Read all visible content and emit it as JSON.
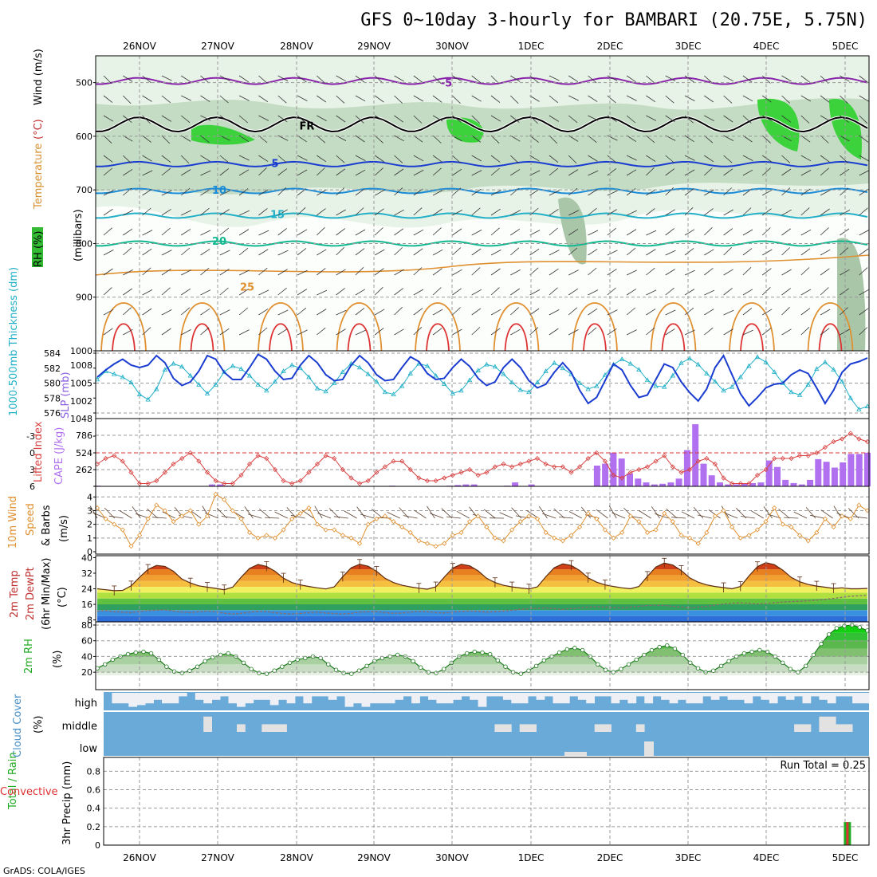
{
  "title": "GFS 0~10day 3-hourly for BAMBARI (20.75E, 5.75N)",
  "credit": "GrADS: COLA/IGES",
  "run_total": "Run Total = 0.25",
  "colors": {
    "thickness": "#22b0c8",
    "slp": "#1a3cd0",
    "lifted_index": "#d84040",
    "cape": "#b070f0",
    "wind_speed": "#e09030",
    "rh2m_fill": "#66bb55",
    "cloud": "#6aaad8",
    "precip_total": "#22aa22",
    "precip_conv": "#dd3333"
  },
  "chart_data": [
    {
      "type": "contour",
      "panel": "upper-air",
      "x_labels": [
        "26NOV",
        "27NOV",
        "28NOV",
        "29NOV",
        "30NOV",
        "1DEC",
        "2DEC",
        "3DEC",
        "4DEC",
        "5DEC"
      ],
      "ylabel_parts": [
        "RH (%)",
        "Temperature",
        "(°C)",
        "Wind (m/s)",
        "(millibars)"
      ],
      "y_ticks": [
        "500",
        "600",
        "700",
        "800",
        "900",
        "1000"
      ],
      "ylim": [
        1000,
        450
      ],
      "isotherm_labels": [
        {
          "text": "-5",
          "level": 500
        },
        {
          "text": "FR",
          "level": 580
        },
        {
          "text": "5",
          "level": 650
        },
        {
          "text": "10",
          "level": 700
        },
        {
          "text": "15",
          "level": 745
        },
        {
          "text": "20",
          "level": 795
        },
        {
          "text": "25",
          "level": 880
        }
      ]
    },
    {
      "type": "line",
      "panel": "thickness-slp",
      "ylabel_left": "1000-500mb Thickness (dm)",
      "ylabel_right": "SLP (mb)",
      "y_ticks_left": [
        "584",
        "582",
        "580",
        "578",
        "576"
      ],
      "y_ticks_right": [
        "1008",
        "1005",
        "1002"
      ],
      "thickness_dm": [
        580.5,
        581.6,
        581.2,
        580.8,
        580.1,
        578.5,
        577.8,
        579.2,
        581.8,
        582.6,
        582.2,
        581.0,
        579.8,
        578.6,
        579.8,
        581.5,
        582.3,
        581.9,
        581.0,
        579.8,
        579.0,
        580.2,
        581.6,
        582.4,
        582.0,
        580.8,
        579.3,
        578.9,
        580.0,
        581.5,
        582.6,
        582.1,
        581.2,
        580.2,
        578.8,
        578.5,
        579.6,
        581.3,
        582.6,
        582.3,
        581.0,
        579.9,
        578.6,
        579.0,
        580.4,
        581.7,
        582.5,
        582.2,
        581.2,
        580.1,
        579.1,
        578.8,
        580.1,
        581.6,
        582.7,
        582.0,
        581.2,
        580.0,
        579.2,
        579.6,
        581.1,
        582.5,
        583.2,
        582.6,
        581.8,
        580.4,
        579.6,
        579.5,
        581.0,
        582.7,
        583.3,
        582.5,
        581.3,
        580.2,
        579.0,
        579.5,
        580.8,
        582.3,
        583.5,
        582.8,
        581.5,
        580.0,
        578.8,
        578.4,
        579.8,
        581.9,
        582.8,
        581.8,
        580.2,
        578.0,
        576.5,
        576.9
      ],
      "slp_mb": [
        1006.0,
        1007.2,
        1008.2,
        1009.0,
        1008.0,
        1007.6,
        1008.0,
        1009.6,
        1008.4,
        1005.8,
        1004.6,
        1005.2,
        1007.0,
        1009.6,
        1009.0,
        1006.8,
        1005.6,
        1005.6,
        1007.6,
        1009.8,
        1009.0,
        1007.0,
        1005.6,
        1005.8,
        1008.0,
        1009.6,
        1008.4,
        1006.4,
        1005.4,
        1005.6,
        1008.0,
        1009.6,
        1008.4,
        1006.4,
        1005.4,
        1005.6,
        1007.6,
        1009.4,
        1008.6,
        1006.6,
        1005.6,
        1005.8,
        1007.6,
        1009.0,
        1007.8,
        1005.8,
        1004.6,
        1005.2,
        1007.6,
        1009.0,
        1007.6,
        1005.4,
        1004.2,
        1004.8,
        1006.8,
        1008.4,
        1006.8,
        1003.8,
        1001.6,
        1002.6,
        1005.4,
        1008.2,
        1007.2,
        1004.6,
        1002.6,
        1003.0,
        1005.6,
        1008.2,
        1007.6,
        1005.2,
        1003.4,
        1002.0,
        1004.0,
        1007.6,
        1009.6,
        1006.4,
        1003.2,
        1001.2,
        1002.6,
        1004.2,
        1004.8,
        1005.0,
        1006.4,
        1007.2,
        1006.6,
        1004.2,
        1001.6,
        1003.8,
        1006.8,
        1008.2,
        1008.6,
        1009.2
      ]
    },
    {
      "type": "bar+line",
      "panel": "lifted-index-cape",
      "ylabel_left": "Lifted Index",
      "ylabel_right": "CAPE (J/kg)",
      "y_ticks_left": [
        "-3",
        "0",
        "3",
        "6"
      ],
      "y_ticks_right": [
        "786",
        "524",
        "262",
        "1048"
      ],
      "lifted_index": [
        2.0,
        1.0,
        0.5,
        1.5,
        3.5,
        5.5,
        5.5,
        5.0,
        3.5,
        2.0,
        1.0,
        0.0,
        1.5,
        3.5,
        5.0,
        5.5,
        5.5,
        4.0,
        2.0,
        0.5,
        1.0,
        3.0,
        5.0,
        5.5,
        5.0,
        3.5,
        2.0,
        0.5,
        1.0,
        3.0,
        4.5,
        5.5,
        5.0,
        3.5,
        2.5,
        1.5,
        1.5,
        3.0,
        4.5,
        5.0,
        5.0,
        4.5,
        4.0,
        3.5,
        3.0,
        4.0,
        3.5,
        2.5,
        2.0,
        2.5,
        2.0,
        1.5,
        1.0,
        2.0,
        2.5,
        2.5,
        3.5,
        2.5,
        1.0,
        0.0,
        1.5,
        4.0,
        4.5,
        3.5,
        3.0,
        2.5,
        1.5,
        0.5,
        2.5,
        3.5,
        3.0,
        1.5,
        1.0,
        2.0,
        4.5,
        5.5,
        5.5,
        5.5,
        4.0,
        3.0,
        1.0,
        1.0,
        1.0,
        0.5,
        0.5,
        0.0,
        -1.0,
        -2.0,
        -2.5,
        -3.5,
        -2.5,
        -2.0
      ],
      "cape_jkg": [
        10,
        0,
        0,
        0,
        0,
        0,
        0,
        0,
        0,
        0,
        0,
        0,
        0,
        0,
        30,
        30,
        10,
        0,
        0,
        0,
        0,
        0,
        0,
        0,
        0,
        0,
        0,
        0,
        0,
        0,
        0,
        0,
        0,
        0,
        0,
        0,
        10,
        0,
        0,
        0,
        0,
        0,
        0,
        10,
        20,
        30,
        30,
        0,
        0,
        0,
        10,
        60,
        0,
        30,
        0,
        0,
        0,
        0,
        0,
        0,
        0,
        320,
        350,
        520,
        430,
        200,
        120,
        60,
        30,
        40,
        60,
        120,
        560,
        960,
        350,
        170,
        60,
        30,
        30,
        40,
        50,
        60,
        400,
        300,
        100,
        50,
        30,
        100,
        420,
        380,
        290,
        370,
        500,
        500,
        520
      ]
    },
    {
      "type": "line",
      "panel": "10m-wind",
      "ylabel_parts": [
        "10m Wind",
        "Speed",
        "& Barbs",
        "(m/s)"
      ],
      "y_ticks": [
        "4",
        "3",
        "2",
        "1",
        "0"
      ],
      "ylim": [
        0,
        4.6
      ],
      "wind_speed_ms": [
        3.2,
        2.4,
        2.0,
        1.6,
        0.4,
        1.2,
        2.4,
        3.4,
        3.0,
        2.2,
        2.6,
        3.0,
        2.0,
        2.6,
        4.2,
        3.8,
        3.0,
        2.4,
        1.4,
        1.0,
        1.2,
        1.0,
        1.6,
        2.4,
        2.8,
        3.2,
        2.0,
        1.6,
        1.6,
        1.2,
        1.0,
        0.6,
        2.0,
        2.4,
        2.6,
        2.2,
        1.8,
        1.4,
        0.8,
        0.6,
        0.4,
        0.6,
        1.2,
        1.4,
        2.2,
        2.6,
        1.8,
        1.0,
        0.8,
        1.6,
        2.2,
        2.6,
        2.4,
        1.4,
        1.0,
        0.8,
        1.2,
        1.8,
        2.8,
        2.4,
        1.6,
        1.0,
        1.4,
        2.6,
        2.2,
        1.4,
        1.6,
        2.8,
        2.2,
        1.2,
        1.0,
        0.6,
        1.4,
        2.6,
        3.0,
        1.8,
        1.0,
        1.2,
        1.6,
        2.2,
        3.2,
        2.0,
        1.8,
        1.2,
        0.8,
        1.4,
        2.4,
        1.8,
        2.6,
        2.4,
        3.4,
        3.0
      ]
    },
    {
      "type": "area",
      "panel": "2m-temp",
      "ylabel_parts": [
        "2m Temp",
        "2m DewPt",
        "(6hr Min/Max)",
        "(°C)"
      ],
      "y_ticks": [
        "40",
        "32",
        "24",
        "16",
        "8"
      ],
      "ylim": [
        7,
        41
      ],
      "temp_c": [
        24.0,
        23.5,
        23.0,
        23.2,
        25.5,
        30.0,
        34.0,
        36.0,
        35.5,
        33.0,
        29.0,
        27.0,
        25.5,
        24.8,
        24.2,
        23.5,
        24.8,
        30.0,
        34.5,
        36.5,
        35.5,
        33.0,
        29.5,
        27.2,
        26.0,
        25.2,
        24.5,
        23.9,
        25.0,
        30.2,
        34.8,
        36.6,
        35.6,
        33.0,
        29.4,
        27.2,
        25.8,
        25.0,
        24.3,
        23.8,
        25.0,
        30.0,
        34.6,
        36.6,
        35.8,
        33.2,
        29.4,
        27.2,
        25.8,
        25.0,
        24.4,
        23.9,
        25.0,
        30.2,
        34.8,
        36.8,
        36.0,
        33.4,
        29.6,
        27.4,
        26.0,
        25.2,
        24.5,
        24.0,
        25.2,
        30.4,
        35.2,
        37.2,
        36.2,
        33.4,
        29.6,
        27.4,
        26.0,
        25.2,
        24.6,
        24.0,
        25.2,
        30.6,
        35.4,
        37.4,
        36.4,
        33.6,
        29.8,
        27.6,
        26.2,
        25.4,
        24.8,
        24.2,
        24.5,
        24.0,
        24.0,
        24.2
      ],
      "dewpt_c": [
        12.5,
        12.8,
        12.2,
        12.0,
        11.8,
        12.4,
        12.8,
        13.0,
        13.2,
        12.6,
        12.0,
        11.8,
        12.2,
        12.6,
        12.2,
        11.5,
        11.0,
        11.4,
        12.0,
        12.4,
        12.2,
        11.8,
        11.2,
        11.0,
        11.4,
        11.8,
        12.0,
        11.6,
        11.2,
        11.0,
        11.4,
        12.0,
        12.2,
        12.2,
        11.8,
        11.4,
        11.6,
        12.0,
        12.4,
        12.2,
        11.8,
        11.6,
        12.0,
        12.4,
        12.6,
        12.4,
        12.0,
        12.2,
        12.6,
        13.0,
        13.4,
        13.8,
        14.0,
        14.2,
        13.8,
        13.4,
        13.8,
        14.2,
        14.6,
        14.8,
        14.6,
        14.4,
        14.2,
        14.6,
        15.0,
        15.4,
        15.6,
        15.4,
        15.0,
        14.6,
        14.2,
        14.6,
        15.0,
        15.6,
        16.2,
        16.6,
        16.8,
        16.6,
        16.2,
        16.4,
        16.8,
        17.2,
        17.4,
        17.6,
        17.8,
        18.2,
        18.6,
        19.0,
        19.6,
        20.2,
        20.4,
        20.6
      ]
    },
    {
      "type": "area",
      "panel": "2m-rh",
      "ylabel_parts": [
        "2m RH",
        "(%)"
      ],
      "y_ticks": [
        "80",
        "60",
        "40",
        "20"
      ],
      "ylim": [
        10,
        82
      ],
      "rh_pct": [
        25,
        30,
        36,
        40,
        43,
        45,
        46,
        44,
        36,
        27,
        21,
        19,
        22,
        27,
        34,
        39,
        42,
        44,
        40,
        32,
        24,
        19,
        18,
        22,
        27,
        32,
        36,
        38,
        40,
        38,
        30,
        23,
        19,
        18,
        22,
        28,
        34,
        38,
        40,
        42,
        40,
        34,
        26,
        20,
        19,
        24,
        32,
        40,
        44,
        46,
        45,
        43,
        35,
        27,
        20,
        18,
        22,
        28,
        35,
        40,
        45,
        49,
        51,
        48,
        40,
        30,
        23,
        20,
        24,
        30,
        36,
        42,
        48,
        52,
        54,
        50,
        42,
        32,
        25,
        20,
        22,
        28,
        34,
        40,
        44,
        46,
        48,
        46,
        40,
        32,
        24,
        20,
        28,
        42,
        56,
        68,
        76,
        79,
        80,
        77,
        73
      ],
      "final_max_pct": 80
    },
    {
      "type": "bar",
      "panel": "cloud-cover",
      "ylabel_parts": [
        "Cloud Cover",
        "(%)"
      ],
      "layer_labels": [
        "high",
        "middle",
        "low"
      ],
      "high_pct": [
        100,
        40,
        40,
        20,
        30,
        40,
        60,
        40,
        40,
        80,
        100,
        60,
        40,
        60,
        80,
        40,
        20,
        40,
        60,
        60,
        30,
        60,
        40,
        80,
        40,
        80,
        80,
        60,
        80,
        20,
        40,
        20,
        40,
        40,
        40,
        60,
        80,
        40,
        80,
        60,
        40,
        40,
        60,
        80,
        60,
        20,
        80,
        80,
        60,
        40,
        40,
        80,
        60,
        80,
        40,
        40,
        80,
        60,
        40,
        80,
        80,
        40,
        60,
        40,
        80,
        40,
        80,
        60,
        40,
        60,
        40,
        40,
        80,
        60,
        80,
        60,
        60,
        40,
        80,
        60,
        40,
        80,
        60,
        80,
        40,
        80,
        60,
        40,
        80,
        80,
        40,
        40
      ],
      "middle_pct": [
        0,
        0,
        0,
        0,
        0,
        0,
        0,
        0,
        0,
        0,
        0,
        0,
        80,
        0,
        0,
        0,
        40,
        0,
        0,
        40,
        40,
        40,
        0,
        0,
        0,
        0,
        0,
        0,
        0,
        0,
        0,
        0,
        0,
        0,
        0,
        0,
        0,
        0,
        0,
        0,
        0,
        0,
        0,
        0,
        0,
        0,
        0,
        40,
        40,
        0,
        40,
        40,
        0,
        0,
        0,
        0,
        0,
        0,
        0,
        40,
        40,
        0,
        0,
        0,
        40,
        0,
        0,
        0,
        0,
        0,
        0,
        0,
        0,
        0,
        0,
        0,
        0,
        0,
        0,
        0,
        0,
        0,
        0,
        40,
        40,
        0,
        80,
        80,
        40,
        40,
        0,
        0
      ],
      "low_pct": [
        0,
        0,
        0,
        0,
        0,
        0,
        0,
        0,
        0,
        0,
        0,
        0,
        0,
        0,
        0,
        0,
        0,
        0,
        0,
        0,
        0,
        0,
        0,
        0,
        0,
        0,
        0,
        0,
        0,
        0,
        0,
        0,
        0,
        0,
        0,
        0,
        0,
        0,
        0,
        0,
        0,
        0,
        0,
        0,
        0,
        0,
        0,
        0,
        0,
        0,
        0,
        0,
        0,
        0,
        0,
        0,
        0,
        0,
        0,
        0,
        0,
        0,
        0,
        0,
        0,
        0,
        0,
        0,
        0,
        0,
        0,
        0,
        0,
        0,
        0,
        0,
        0,
        0,
        0,
        0,
        0,
        0,
        0,
        0,
        0,
        0,
        0,
        0,
        0,
        0,
        0,
        0
      ]
    },
    {
      "type": "bar",
      "panel": "3hr-precip",
      "ylabel_parts": [
        "Total / Rain",
        "Convective",
        "3hr Precip (mm)"
      ],
      "y_ticks": [
        "0.8",
        "0.6",
        "0.4",
        "0.2",
        "0"
      ],
      "ylim": [
        0,
        0.95
      ],
      "total_mm": [
        0,
        0,
        0,
        0,
        0,
        0,
        0,
        0,
        0,
        0,
        0,
        0,
        0,
        0,
        0,
        0,
        0,
        0,
        0,
        0,
        0,
        0,
        0,
        0,
        0,
        0,
        0,
        0,
        0,
        0,
        0,
        0,
        0,
        0,
        0,
        0,
        0,
        0,
        0,
        0,
        0,
        0,
        0,
        0,
        0,
        0,
        0,
        0,
        0,
        0,
        0,
        0,
        0,
        0,
        0,
        0,
        0,
        0,
        0,
        0,
        0,
        0,
        0,
        0,
        0,
        0,
        0,
        0,
        0,
        0,
        0,
        0,
        0,
        0,
        0,
        0,
        0,
        0,
        0,
        0,
        0,
        0,
        0,
        0,
        0,
        0,
        0,
        0,
        0.25,
        0,
        0
      ],
      "convective_mm": [
        0,
        0,
        0,
        0,
        0,
        0,
        0,
        0,
        0,
        0,
        0,
        0,
        0,
        0,
        0,
        0,
        0,
        0,
        0,
        0,
        0,
        0,
        0,
        0,
        0,
        0,
        0,
        0,
        0,
        0,
        0,
        0,
        0,
        0,
        0,
        0,
        0,
        0,
        0,
        0,
        0,
        0,
        0,
        0,
        0,
        0,
        0,
        0,
        0,
        0,
        0,
        0,
        0,
        0,
        0,
        0,
        0,
        0,
        0,
        0,
        0,
        0,
        0,
        0,
        0,
        0,
        0,
        0,
        0,
        0,
        0,
        0,
        0,
        0,
        0,
        0,
        0,
        0,
        0,
        0,
        0,
        0,
        0,
        0,
        0,
        0,
        0,
        0,
        0.25,
        0,
        0
      ]
    }
  ]
}
